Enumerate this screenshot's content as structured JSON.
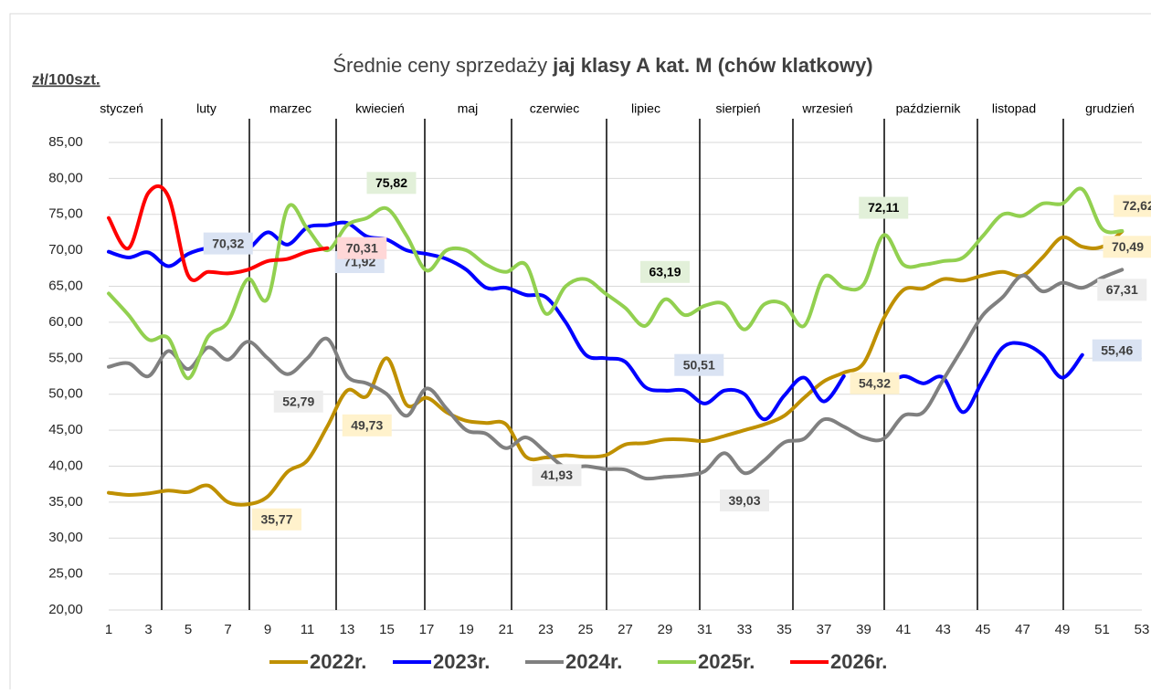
{
  "chart_data": {
    "type": "line",
    "title_parts": [
      "Średnie ceny sprzedaży",
      "jaj klasy A kat.  M (chów klatkowy)"
    ],
    "y_unit": "zł/100szt.",
    "months": [
      "styczeń",
      "luty",
      "marzec",
      "kwiecień",
      "maj",
      "czerwiec",
      "lipiec",
      "sierpień",
      "wrzesień",
      "październik",
      "listopad",
      "grudzień"
    ],
    "x": [
      1,
      2,
      3,
      4,
      5,
      6,
      7,
      8,
      9,
      10,
      11,
      12,
      13,
      14,
      15,
      16,
      17,
      18,
      19,
      20,
      21,
      22,
      23,
      24,
      25,
      26,
      27,
      28,
      29,
      30,
      31,
      32,
      33,
      34,
      35,
      36,
      37,
      38,
      39,
      40,
      41,
      42,
      43,
      44,
      45,
      46,
      47,
      48,
      49,
      50,
      51,
      52,
      53
    ],
    "xlim": [
      1,
      53
    ],
    "xticks": [
      1,
      3,
      5,
      7,
      9,
      11,
      13,
      15,
      17,
      19,
      21,
      23,
      25,
      27,
      29,
      31,
      33,
      35,
      37,
      39,
      41,
      43,
      45,
      47,
      49,
      51,
      53
    ],
    "ylim": [
      20,
      85
    ],
    "yticks": [
      {
        "value": 20,
        "label": "20,00"
      },
      {
        "value": 25,
        "label": "25,00"
      },
      {
        "value": 30,
        "label": "30,00"
      },
      {
        "value": 35,
        "label": "35,00"
      },
      {
        "value": 40,
        "label": "40,00"
      },
      {
        "value": 45,
        "label": "45,00"
      },
      {
        "value": 50,
        "label": "50,00"
      },
      {
        "value": 55,
        "label": "55,00"
      },
      {
        "value": 60,
        "label": "60,00"
      },
      {
        "value": 65,
        "label": "65,00"
      },
      {
        "value": 70,
        "label": "70,00"
      },
      {
        "value": 75,
        "label": "75,00"
      },
      {
        "value": 80,
        "label": "80,00"
      },
      {
        "value": 85,
        "label": "85,00"
      }
    ],
    "grid": true,
    "legend": "bottom",
    "series": [
      {
        "name": "2022r.",
        "color": "#bf9000",
        "label_color": "#fff2cc",
        "values": [
          36.3,
          36.0,
          36.2,
          36.6,
          36.4,
          37.3,
          35.0,
          34.7,
          35.77,
          39.2,
          40.8,
          45.5,
          50.5,
          49.73,
          55.0,
          48.5,
          49.5,
          47.5,
          46.3,
          46.0,
          45.8,
          41.3,
          41.2,
          41.5,
          41.3,
          41.5,
          43.0,
          43.2,
          43.7,
          43.7,
          43.5,
          44.2,
          45.0,
          45.8,
          47.0,
          49.5,
          51.8,
          53.0,
          54.32,
          60.5,
          64.5,
          64.7,
          66.0,
          65.8,
          66.5,
          67.0,
          66.5,
          69.0,
          71.8,
          70.5,
          70.49,
          72.62,
          null
        ],
        "value_labels": [
          null,
          null,
          null,
          null,
          null,
          null,
          null,
          null,
          "35,77",
          null,
          null,
          null,
          null,
          "49,73",
          null,
          null,
          null,
          null,
          null,
          null,
          null,
          null,
          null,
          null,
          null,
          null,
          null,
          null,
          null,
          null,
          null,
          null,
          null,
          null,
          null,
          null,
          null,
          null,
          "54,32",
          null,
          null,
          null,
          null,
          null,
          null,
          null,
          null,
          null,
          null,
          null,
          "70,49",
          "72,62",
          null
        ]
      },
      {
        "name": "2023r.",
        "color": "#0000ff",
        "label_color": "#dae3f3",
        "values": [
          69.8,
          69.0,
          69.7,
          67.8,
          69.5,
          70.32,
          70.3,
          70.2,
          72.5,
          70.8,
          73.2,
          73.5,
          73.8,
          71.92,
          71.5,
          70.0,
          69.5,
          68.8,
          67.3,
          64.8,
          64.8,
          63.8,
          63.5,
          60.0,
          55.5,
          55.0,
          54.5,
          51.0,
          50.5,
          50.5,
          48.7,
          50.51,
          50.0,
          46.5,
          49.8,
          52.3,
          49.0,
          52.5,
          null,
          51.0,
          52.5,
          51.5,
          52.3,
          47.5,
          52.0,
          56.5,
          57.0,
          55.5,
          52.3,
          55.46,
          null,
          null,
          null
        ],
        "value_labels": [
          null,
          null,
          null,
          null,
          null,
          "70,32",
          null,
          null,
          null,
          null,
          null,
          null,
          null,
          "71,92",
          null,
          null,
          null,
          null,
          null,
          null,
          null,
          null,
          null,
          null,
          null,
          null,
          null,
          null,
          null,
          null,
          null,
          "50,51",
          null,
          null,
          null,
          null,
          null,
          null,
          null,
          null,
          null,
          null,
          null,
          null,
          null,
          null,
          null,
          null,
          null,
          "55,46",
          null,
          null,
          null
        ]
      },
      {
        "name": "2024r.",
        "color": "#808080",
        "label_color": "#ededed",
        "values": [
          53.8,
          54.3,
          52.5,
          56.0,
          53.5,
          56.5,
          54.8,
          57.3,
          55.0,
          52.79,
          55.0,
          57.7,
          52.5,
          51.5,
          50.0,
          47.0,
          50.8,
          48.0,
          45.0,
          44.5,
          42.5,
          44.0,
          41.93,
          39.8,
          40.0,
          39.6,
          39.5,
          38.3,
          38.5,
          38.7,
          39.3,
          41.8,
          39.03,
          40.8,
          43.3,
          43.8,
          46.5,
          45.5,
          44.0,
          43.8,
          47.0,
          47.5,
          52.0,
          56.5,
          61.0,
          63.5,
          66.5,
          64.3,
          65.5,
          64.8,
          66.2,
          67.31,
          null
        ],
        "value_labels": [
          null,
          null,
          null,
          null,
          null,
          null,
          null,
          null,
          null,
          "52,79",
          null,
          null,
          null,
          null,
          null,
          null,
          null,
          null,
          null,
          null,
          null,
          null,
          "41,93",
          null,
          null,
          null,
          null,
          null,
          null,
          null,
          null,
          null,
          "39,03",
          null,
          null,
          null,
          null,
          null,
          null,
          null,
          null,
          null,
          null,
          null,
          null,
          null,
          null,
          null,
          null,
          null,
          null,
          "67,31",
          null
        ]
      },
      {
        "name": "2025r.",
        "color": "#92d050",
        "label_color": "#e2f0d9",
        "values": [
          64.0,
          61.0,
          57.6,
          57.8,
          52.2,
          58.0,
          60.0,
          66.0,
          63.3,
          75.9,
          73.0,
          70.0,
          73.5,
          74.5,
          75.82,
          72.0,
          67.2,
          70.0,
          70.0,
          68.0,
          67.0,
          68.0,
          61.2,
          65.0,
          66.0,
          64.0,
          62.0,
          59.5,
          63.19,
          61.0,
          62.3,
          62.5,
          59.0,
          62.5,
          62.5,
          59.5,
          66.3,
          64.8,
          65.3,
          72.11,
          68.0,
          68.0,
          68.5,
          69.0,
          72.0,
          75.0,
          74.8,
          76.5,
          76.5,
          78.5,
          73.0,
          72.7,
          null
        ],
        "value_labels": [
          null,
          null,
          null,
          null,
          null,
          null,
          null,
          null,
          null,
          null,
          null,
          null,
          null,
          null,
          "75,82",
          null,
          null,
          null,
          null,
          null,
          null,
          null,
          null,
          null,
          null,
          null,
          null,
          null,
          "63,19",
          null,
          null,
          null,
          null,
          null,
          null,
          null,
          null,
          null,
          null,
          "72,11",
          null,
          null,
          null,
          null,
          null,
          null,
          null,
          null,
          null,
          null,
          null,
          null,
          null
        ]
      },
      {
        "name": "2026r.",
        "color": "#ff0000",
        "label_color": "#ffd7d7",
        "values": [
          74.5,
          70.3,
          78.0,
          77.5,
          66.5,
          67.0,
          66.8,
          67.3,
          68.5,
          68.8,
          69.8,
          70.31,
          null,
          null,
          null,
          null,
          null,
          null,
          null,
          null,
          null,
          null,
          null,
          null,
          null,
          null,
          null,
          null,
          null,
          null,
          null,
          null,
          null,
          null,
          null,
          null,
          null,
          null,
          null,
          null,
          null,
          null,
          null,
          null,
          null,
          null,
          null,
          null,
          null,
          null,
          null,
          null,
          null
        ],
        "value_labels": [
          null,
          null,
          null,
          null,
          null,
          null,
          null,
          null,
          null,
          null,
          null,
          "70,31",
          null,
          null,
          null,
          null,
          null,
          null,
          null,
          null,
          null,
          null,
          null,
          null,
          null,
          null,
          null,
          null,
          null,
          null,
          null,
          null,
          null,
          null,
          null,
          null,
          null,
          null,
          null,
          null,
          null,
          null,
          null,
          null,
          null,
          null,
          null,
          null,
          null,
          null,
          null,
          null,
          null
        ]
      }
    ]
  }
}
